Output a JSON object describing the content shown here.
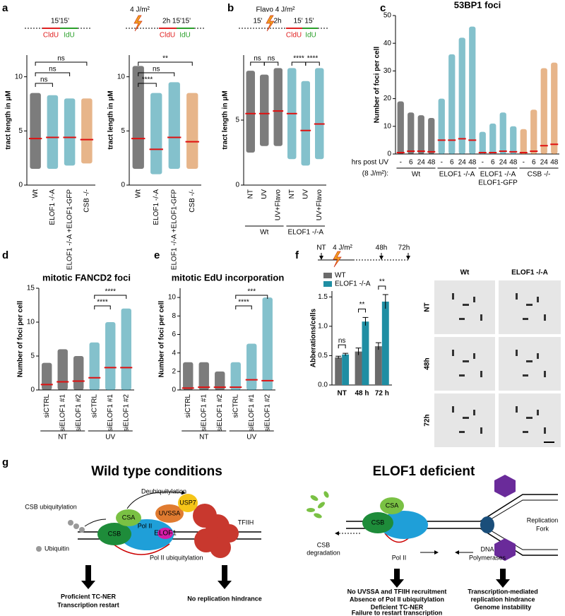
{
  "panel_labels": [
    "a",
    "b",
    "c",
    "d",
    "e",
    "f",
    "g"
  ],
  "schematics": {
    "a_left": [
      "15'15'",
      "CldU",
      "IdU"
    ],
    "a_right": [
      "4 J/m²",
      "2h 15'15'",
      "CldU",
      "IdU"
    ],
    "b": [
      "Flavo 4 J/m²",
      "15'",
      "2h",
      "15' 15'",
      "CldU",
      "IdU"
    ],
    "f": [
      "NT",
      "4 J/m²",
      "48h",
      "72h"
    ]
  },
  "micrographs": {
    "columns": [
      "Wt",
      "ELOF1 -/-A"
    ],
    "rows": [
      "NT",
      "48h",
      "72h"
    ]
  },
  "chart_data": [
    {
      "type": "strip",
      "ylabel": "tract length in μM",
      "categories": [
        "Wt",
        "ELOF1 -/-A",
        "ELOF1 -/-A +ELOF1-GFP",
        "CSB -/-"
      ],
      "values": [
        4.3,
        4.4,
        4.4,
        4.2
      ],
      "ranges": [
        [
          1.5,
          8.5
        ],
        [
          1.5,
          8.3
        ],
        [
          1.8,
          8.0
        ],
        [
          2.0,
          8.0
        ]
      ],
      "colors": [
        "#111111",
        "#1f8ea3",
        "#1f8ea3",
        "#d4782a"
      ],
      "ylim": [
        0,
        12
      ],
      "yticks": [
        0,
        5,
        10
      ],
      "comparisons": [
        {
          "groups": [
            0,
            1
          ],
          "label": "ns"
        },
        {
          "groups": [
            0,
            2
          ],
          "label": "ns"
        },
        {
          "groups": [
            0,
            3
          ],
          "label": "ns"
        }
      ]
    },
    {
      "type": "strip",
      "ylabel": "tract length in μM",
      "categories": [
        "Wt",
        "ELOF1 -/-A",
        "ELOF1 -/-A +ELOF1-GFP",
        "CSB -/-"
      ],
      "values": [
        4.3,
        3.3,
        4.4,
        4.0
      ],
      "ranges": [
        [
          1.5,
          11
        ],
        [
          1.0,
          8.5
        ],
        [
          1.5,
          9.5
        ],
        [
          1.5,
          8.5
        ]
      ],
      "colors": [
        "#111111",
        "#1f8ea3",
        "#1f8ea3",
        "#d4782a"
      ],
      "ylim": [
        0,
        12
      ],
      "yticks": [
        0,
        5,
        10
      ],
      "comparisons": [
        {
          "groups": [
            0,
            1
          ],
          "label": "****"
        },
        {
          "groups": [
            0,
            2
          ],
          "label": "ns"
        },
        {
          "groups": [
            0,
            3
          ],
          "label": "**"
        }
      ]
    },
    {
      "type": "strip",
      "ylabel": "tract length in μM",
      "categories": [
        "NT",
        "UV",
        "UV+Flavo",
        "NT",
        "UV",
        "UV+Flavo"
      ],
      "values": [
        5.5,
        5.5,
        5.7,
        5.5,
        4.2,
        4.7
      ],
      "ranges": [
        [
          2.5,
          8.8
        ],
        [
          3.0,
          8.5
        ],
        [
          3.0,
          9.0
        ],
        [
          2.0,
          9.0
        ],
        [
          1.5,
          8.0
        ],
        [
          2.0,
          9.0
        ]
      ],
      "colors": [
        "#111111",
        "#111111",
        "#111111",
        "#1f8ea3",
        "#1f8ea3",
        "#1f8ea3"
      ],
      "ylim": [
        0,
        10
      ],
      "yticks": [
        0,
        5
      ],
      "groups": [
        {
          "name": "Wt",
          "span": [
            0,
            2
          ]
        },
        {
          "name": "ELOF1 -/-A",
          "span": [
            3,
            5
          ]
        }
      ],
      "comparisons": [
        {
          "groups": [
            0,
            1
          ],
          "label": "ns"
        },
        {
          "groups": [
            1,
            2
          ],
          "label": "ns"
        },
        {
          "groups": [
            3,
            4
          ],
          "label": "****"
        },
        {
          "groups": [
            4,
            5
          ],
          "label": "****"
        }
      ]
    },
    {
      "type": "strip",
      "title": "53BP1 foci",
      "ylabel": "Number of foci per cell",
      "x_caption": [
        "hrs post UV",
        "(8 J/m²):"
      ],
      "categories": [
        "-",
        "6",
        "24",
        "48",
        "-",
        "6",
        "24",
        "48",
        "-",
        "6",
        "24",
        "48",
        "-",
        "6",
        "24",
        "48"
      ],
      "values": [
        0.5,
        1,
        1,
        0.8,
        5,
        5,
        5.5,
        5,
        0.5,
        0.5,
        1,
        0.8,
        0.5,
        1,
        3,
        3.5
      ],
      "ranges": [
        [
          0,
          19
        ],
        [
          0,
          15
        ],
        [
          0,
          14
        ],
        [
          0,
          13
        ],
        [
          0,
          20
        ],
        [
          0,
          36
        ],
        [
          0,
          42
        ],
        [
          0,
          46
        ],
        [
          0,
          8
        ],
        [
          0,
          11
        ],
        [
          0,
          15
        ],
        [
          0,
          10
        ],
        [
          0,
          9
        ],
        [
          0,
          16
        ],
        [
          0,
          31
        ],
        [
          0,
          33
        ]
      ],
      "colors": [
        "#111111",
        "#111111",
        "#111111",
        "#111111",
        "#1f8ea3",
        "#1f8ea3",
        "#1f8ea3",
        "#1f8ea3",
        "#1f8ea3",
        "#1f8ea3",
        "#1f8ea3",
        "#1f8ea3",
        "#d4782a",
        "#d4782a",
        "#d4782a",
        "#d4782a"
      ],
      "ylim": [
        0,
        50
      ],
      "yticks": [
        0,
        10,
        20,
        30,
        40,
        50
      ],
      "groups": [
        {
          "name": "Wt",
          "span": [
            0,
            3
          ]
        },
        {
          "name": "ELOF1 -/-A",
          "span": [
            4,
            7
          ]
        },
        {
          "name": "ELOF1 -/-A",
          "subname": "ELOF1-GFP",
          "span": [
            8,
            11
          ]
        },
        {
          "name": "CSB -/-",
          "span": [
            12,
            15
          ]
        }
      ]
    },
    {
      "type": "strip",
      "title": "mitotic FANCD2 foci",
      "ylabel": "Number of foci per cell",
      "categories": [
        "siCTRL",
        "siELOF1 #1",
        "siELOF1 #2",
        "siCTRL",
        "siELOF1 #1",
        "siELOF1 #2"
      ],
      "values": [
        0.8,
        1.2,
        1.3,
        1.8,
        3.3,
        3.3
      ],
      "ranges": [
        [
          0,
          4
        ],
        [
          0,
          6
        ],
        [
          0,
          5
        ],
        [
          0,
          7
        ],
        [
          0,
          10
        ],
        [
          0,
          12
        ]
      ],
      "colors": [
        "#111111",
        "#111111",
        "#111111",
        "#1f8ea3",
        "#1f8ea3",
        "#1f8ea3"
      ],
      "ylim": [
        0,
        15
      ],
      "yticks": [
        0,
        5,
        10,
        15
      ],
      "groups": [
        {
          "name": "NT",
          "span": [
            0,
            2
          ]
        },
        {
          "name": "UV",
          "span": [
            3,
            5
          ]
        }
      ],
      "comparisons": [
        {
          "groups": [
            3,
            4
          ],
          "label": "****"
        },
        {
          "groups": [
            3,
            5
          ],
          "label": "****"
        }
      ]
    },
    {
      "type": "strip",
      "title": "mitotic EdU incorporation",
      "ylabel": "Number of foci per cell",
      "categories": [
        "siCTRL",
        "siELOF1 #1",
        "siELOF1 #2",
        "siCTRL",
        "siELOF1 #1",
        "siELOF1 #2"
      ],
      "values": [
        0.2,
        0.3,
        0.3,
        0.3,
        1.1,
        1.0
      ],
      "ranges": [
        [
          0,
          3
        ],
        [
          0,
          3
        ],
        [
          0,
          2
        ],
        [
          0,
          3
        ],
        [
          0,
          5
        ],
        [
          0,
          10
        ]
      ],
      "colors": [
        "#111111",
        "#111111",
        "#111111",
        "#1f8ea3",
        "#1f8ea3",
        "#1f8ea3"
      ],
      "ylim": [
        0,
        11
      ],
      "yticks": [
        0,
        2,
        4,
        6,
        8,
        10
      ],
      "groups": [
        {
          "name": "NT",
          "span": [
            0,
            2
          ]
        },
        {
          "name": "UV",
          "span": [
            3,
            5
          ]
        }
      ],
      "comparisons": [
        {
          "groups": [
            3,
            4
          ],
          "label": "****"
        },
        {
          "groups": [
            3,
            5
          ],
          "label": "***"
        }
      ]
    },
    {
      "type": "bar",
      "ylabel": "Abberations/cells",
      "categories": [
        "NT",
        "48 h",
        "72 h"
      ],
      "series": [
        {
          "name": "WT",
          "color": "#6b6b6b",
          "values": [
            0.47,
            0.57,
            0.66
          ],
          "errors": [
            0.02,
            0.06,
            0.06
          ]
        },
        {
          "name": "ELOF1 -/-A",
          "color": "#1f8ea3",
          "values": [
            0.52,
            1.08,
            1.42
          ],
          "errors": [
            0.02,
            0.07,
            0.12
          ]
        }
      ],
      "ylim": [
        0,
        1.6
      ],
      "yticks": [
        {
          "value": 0,
          "label": "0.0"
        },
        0.5,
        {
          "value": 1,
          "label": "1.0"
        },
        1.5
      ],
      "comparisons": [
        "ns",
        "**",
        "**"
      ]
    }
  ],
  "wild_type": {
    "title": "Wild type conditions",
    "labels": [
      "Deubiquitylation",
      "USP7",
      "UVSSA",
      "CSA",
      "Pol II",
      "ELOF1",
      "CSB",
      "TFIIH",
      "CSB ubiquitylation",
      "Ubiquitin",
      "Pol II ubiquitylation",
      "Proficient TC-NER",
      "Transcription restart",
      "No replication hindrance"
    ]
  },
  "elof1_deficient": {
    "title": "ELOF1 deficient",
    "labels": [
      "CSA",
      "CSB",
      "Pol II",
      "CSB",
      "degradation",
      "Replication",
      "Fork",
      "DNA",
      "Polymerases",
      "No UVSSA and TFIIH recruitment",
      "Absence of Pol II ubiquitylation",
      "Deficient TC-NER",
      "Failure to restart transcription",
      "Transcription-mediated",
      "replication hindrance",
      "Genome instability"
    ]
  }
}
